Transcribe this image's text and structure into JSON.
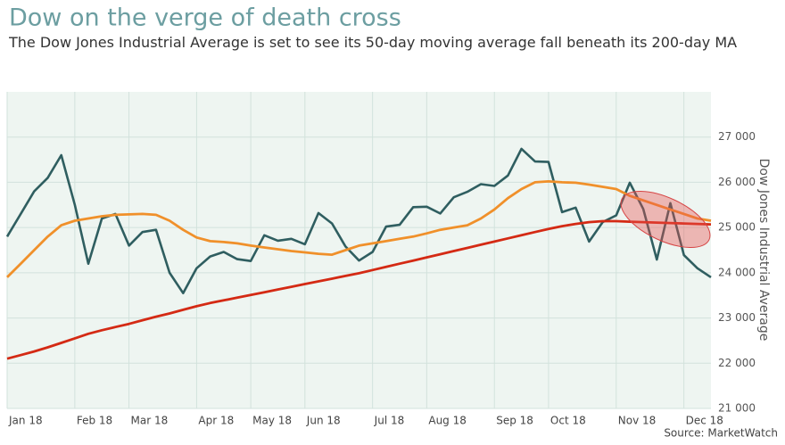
{
  "chart_data": {
    "type": "line",
    "title": "Dow on the verge of death cross",
    "subtitle": "The Dow Jones Industrial Average is set to see its 50-day moving average fall beneath its 200-day MA",
    "y_label": "Dow Jones Industrial Average",
    "source": "Source: MarketWatch",
    "categories": [
      "Jan 18",
      null,
      null,
      null,
      null,
      "Feb 18",
      null,
      null,
      null,
      "Mar 18",
      null,
      null,
      null,
      null,
      "Apr 18",
      null,
      null,
      null,
      "May 18",
      null,
      null,
      null,
      "Jun 18",
      null,
      null,
      null,
      null,
      "Jul 18",
      null,
      null,
      null,
      "Aug 18",
      null,
      null,
      null,
      null,
      "Sep 18",
      null,
      null,
      null,
      "Oct 18",
      null,
      null,
      null,
      null,
      "Nov 18",
      null,
      null,
      null,
      null,
      "Dec 18",
      null,
      null
    ],
    "series": [
      {
        "color": "#2f5e60",
        "values": [
          24800,
          25300,
          25800,
          26100,
          26600,
          25500,
          24200,
          25200,
          25300,
          24600,
          24900,
          24950,
          24000,
          23550,
          24100,
          24360,
          24460,
          24300,
          24260,
          24830,
          24710,
          24750,
          24630,
          25320,
          25090,
          24580,
          24270,
          24460,
          25020,
          25060,
          25450,
          25460,
          25310,
          25670,
          25790,
          25960,
          25920,
          26150,
          26740,
          26460,
          26450,
          25340,
          25440,
          24690,
          25120,
          25270,
          25990,
          25410,
          24290,
          25540,
          24390,
          24100,
          23900
        ]
      },
      {
        "color": "#f0902a",
        "values": [
          23900,
          24200,
          24500,
          24800,
          25050,
          25150,
          25200,
          25250,
          25280,
          25290,
          25300,
          25280,
          25150,
          24950,
          24780,
          24700,
          24680,
          24650,
          24600,
          24560,
          24520,
          24480,
          24450,
          24420,
          24400,
          24500,
          24600,
          24650,
          24700,
          24750,
          24800,
          24870,
          24950,
          25000,
          25050,
          25200,
          25400,
          25650,
          25850,
          26000,
          26020,
          26000,
          25990,
          25950,
          25900,
          25850,
          25700,
          25600,
          25500,
          25400,
          25300,
          25200,
          25150
        ]
      },
      {
        "color": "#d42a14",
        "values": [
          22100,
          22180,
          22260,
          22350,
          22450,
          22550,
          22650,
          22730,
          22800,
          22870,
          22950,
          23030,
          23100,
          23180,
          23260,
          23330,
          23390,
          23450,
          23510,
          23570,
          23630,
          23690,
          23750,
          23810,
          23870,
          23930,
          23990,
          24060,
          24130,
          24200,
          24270,
          24340,
          24410,
          24480,
          24550,
          24620,
          24690,
          24760,
          24830,
          24900,
          24970,
          25030,
          25080,
          25120,
          25140,
          25140,
          25130,
          25120,
          25110,
          25100,
          25090,
          25080,
          25070
        ]
      }
    ],
    "ylim": [
      21000,
      28000
    ],
    "yticks": [
      {
        "value": 21000,
        "label": "21 000"
      },
      {
        "value": 22000,
        "label": "22 000"
      },
      {
        "value": 23000,
        "label": "23 000"
      },
      {
        "value": 24000,
        "label": "24 000"
      },
      {
        "value": 25000,
        "label": "25 000"
      },
      {
        "value": 26000,
        "label": "26 000"
      },
      {
        "value": 27000,
        "label": "27 000"
      }
    ],
    "grid": true
  }
}
